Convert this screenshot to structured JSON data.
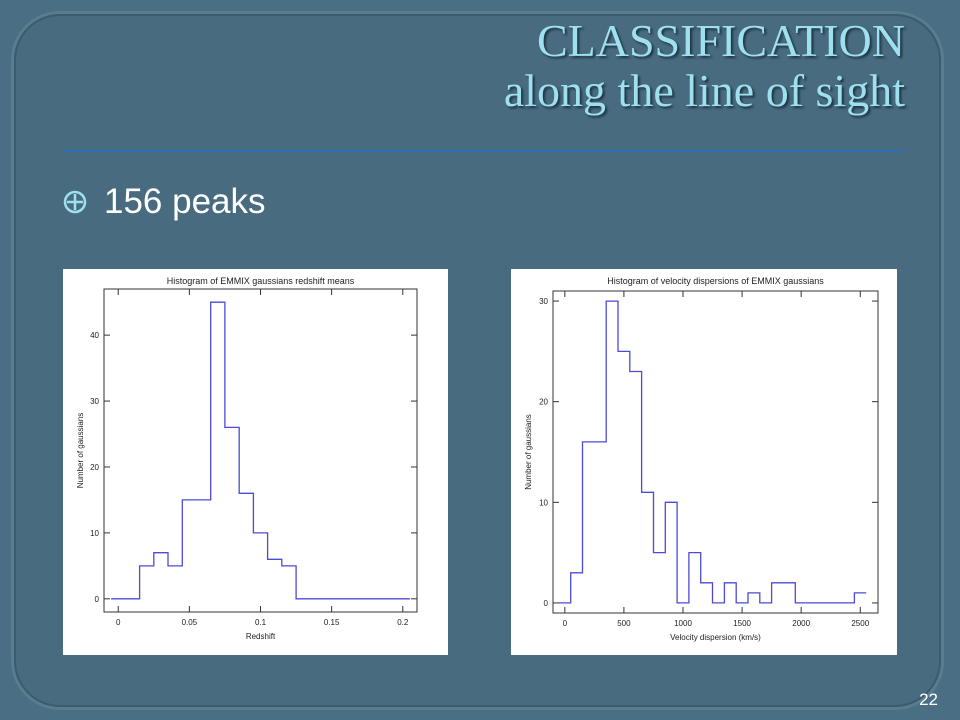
{
  "slide": {
    "title_line1": "CLASSIFICATION",
    "title_line2": "along the line of sight",
    "bullet": "156 peaks",
    "page_number": "22",
    "colors": {
      "background": "#4a6f84",
      "title": "#9fe0ee",
      "rule": "#2a6fb3",
      "plot_line": "#4b4bd6"
    }
  },
  "chart_data": [
    {
      "type": "histogram",
      "title": "Histogram of EMMIX gaussians redshift means",
      "xlabel": "Redshift",
      "ylabel": "Number of gaussians",
      "xlim": [
        -0.01,
        0.21
      ],
      "ylim": [
        -2,
        47
      ],
      "xticks": [
        0,
        0.05,
        0.1,
        0.15,
        0.2
      ],
      "xtick_labels": [
        "0",
        "0.05",
        "0.1",
        "0.15",
        "0.2"
      ],
      "yticks": [
        0,
        10,
        20,
        30,
        40
      ],
      "ytick_labels": [
        "0",
        "10",
        "20",
        "30",
        "40"
      ],
      "bin_edges": [
        -0.005,
        0.005,
        0.015,
        0.025,
        0.035,
        0.045,
        0.055,
        0.065,
        0.075,
        0.085,
        0.095,
        0.105,
        0.115,
        0.125,
        0.135,
        0.145,
        0.155,
        0.165,
        0.175,
        0.185,
        0.195,
        0.205
      ],
      "counts": [
        0,
        0,
        5,
        7,
        5,
        15,
        15,
        45,
        26,
        16,
        10,
        6,
        5,
        0,
        0,
        0,
        0,
        0,
        0,
        0,
        0
      ]
    },
    {
      "type": "histogram",
      "title": "Histogram of velocity dispersions of EMMIX gaussians",
      "xlabel": "Velocity dispersion (km/s)",
      "ylabel": "Number of gaussians",
      "xlim": [
        -100,
        2650
      ],
      "ylim": [
        -1,
        31
      ],
      "xticks": [
        0,
        500,
        1000,
        1500,
        2000,
        2500
      ],
      "xtick_labels": [
        "0",
        "500",
        "1000",
        "1500",
        "2000",
        "2500"
      ],
      "yticks": [
        0,
        10,
        20,
        30
      ],
      "ytick_labels": [
        "0",
        "10",
        "20",
        "30"
      ],
      "bin_edges": [
        -50,
        50,
        150,
        250,
        350,
        450,
        550,
        650,
        750,
        850,
        950,
        1050,
        1150,
        1250,
        1350,
        1450,
        1550,
        1650,
        1750,
        1850,
        1950,
        2050,
        2150,
        2250,
        2350,
        2450,
        2550
      ],
      "counts": [
        0,
        3,
        16,
        16,
        30,
        25,
        23,
        11,
        5,
        10,
        0,
        5,
        2,
        0,
        2,
        0,
        1,
        0,
        2,
        2,
        0,
        0,
        0,
        0,
        0,
        1
      ]
    }
  ]
}
